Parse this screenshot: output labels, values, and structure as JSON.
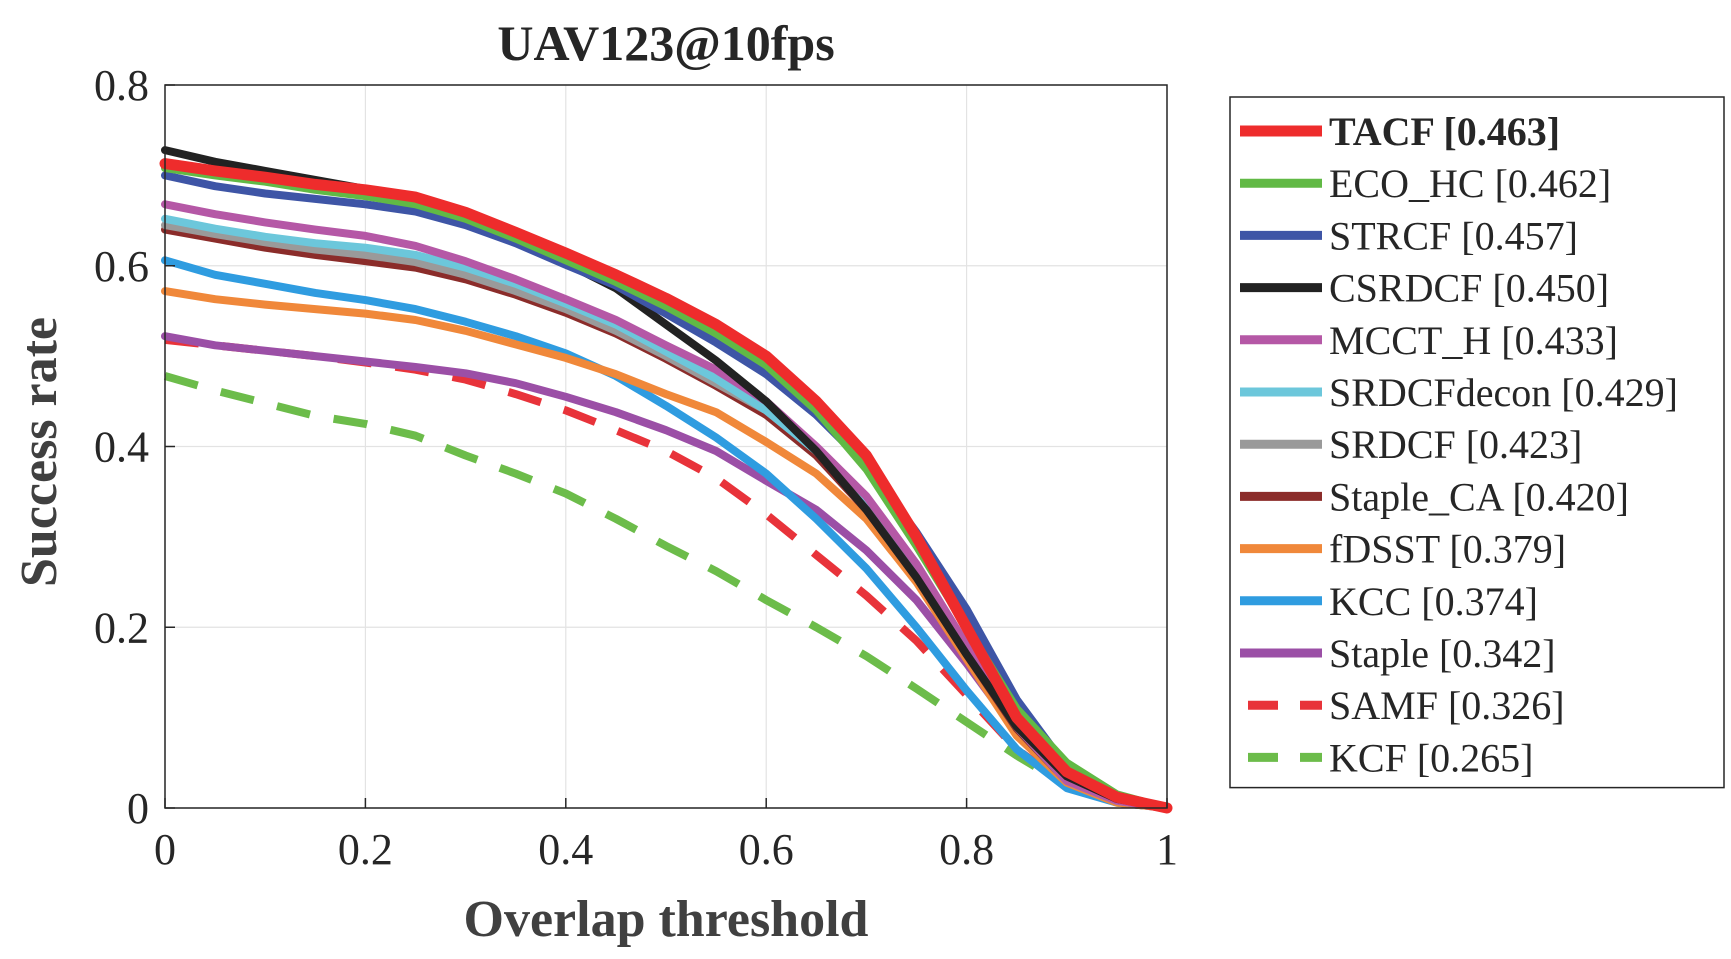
{
  "chart_data": {
    "type": "line",
    "title": "UAV123@10fps",
    "xlabel": "Overlap threshold",
    "ylabel": "Success rate",
    "xlim": [
      0,
      1
    ],
    "ylim": [
      0,
      0.8
    ],
    "xticks": [
      "0",
      "0.2",
      "0.4",
      "0.6",
      "0.8",
      "1"
    ],
    "yticks": [
      "0",
      "0.2",
      "0.4",
      "0.6",
      "0.8"
    ],
    "grid": true,
    "legend_position": "outside-right",
    "x": [
      0,
      0.05,
      0.1,
      0.15,
      0.2,
      0.25,
      0.3,
      0.35,
      0.4,
      0.45,
      0.5,
      0.55,
      0.6,
      0.65,
      0.7,
      0.75,
      0.8,
      0.85,
      0.9,
      0.95,
      1.0
    ],
    "series": [
      {
        "name": "TACF [0.463]",
        "color": "#ee2c2c",
        "dashed": false,
        "bold": true,
        "values": [
          0.713,
          0.705,
          0.698,
          0.69,
          0.684,
          0.676,
          0.659,
          0.637,
          0.614,
          0.59,
          0.564,
          0.535,
          0.5,
          0.45,
          0.39,
          0.3,
          0.2,
          0.1,
          0.04,
          0.012,
          0.0
        ]
      },
      {
        "name": "ECO_HC [0.462]",
        "color": "#61b945",
        "dashed": false,
        "bold": false,
        "values": [
          0.708,
          0.7,
          0.693,
          0.684,
          0.677,
          0.668,
          0.652,
          0.63,
          0.606,
          0.582,
          0.555,
          0.525,
          0.49,
          0.44,
          0.375,
          0.29,
          0.2,
          0.11,
          0.05,
          0.015,
          0.0
        ]
      },
      {
        "name": "STRCF [0.457]",
        "color": "#3e55a6",
        "dashed": false,
        "bold": false,
        "values": [
          0.7,
          0.688,
          0.68,
          0.674,
          0.668,
          0.66,
          0.645,
          0.625,
          0.601,
          0.578,
          0.547,
          0.515,
          0.48,
          0.435,
          0.38,
          0.305,
          0.22,
          0.12,
          0.045,
          0.012,
          0.0
        ]
      },
      {
        "name": "CSRDCF [0.450]",
        "color": "#222222",
        "dashed": false,
        "bold": false,
        "values": [
          0.728,
          0.715,
          0.705,
          0.695,
          0.685,
          0.674,
          0.655,
          0.63,
          0.603,
          0.575,
          0.535,
          0.495,
          0.45,
          0.395,
          0.33,
          0.255,
          0.17,
          0.09,
          0.035,
          0.01,
          0.0
        ]
      },
      {
        "name": "MCCT_H [0.433]",
        "color": "#b558a6",
        "dashed": false,
        "bold": false,
        "values": [
          0.668,
          0.657,
          0.648,
          0.64,
          0.633,
          0.622,
          0.605,
          0.585,
          0.563,
          0.54,
          0.512,
          0.485,
          0.45,
          0.4,
          0.345,
          0.27,
          0.18,
          0.09,
          0.03,
          0.008,
          0.0
        ]
      },
      {
        "name": "SRDCFdecon [0.429]",
        "color": "#6cc7db",
        "dashed": false,
        "bold": false,
        "values": [
          0.652,
          0.641,
          0.632,
          0.625,
          0.62,
          0.612,
          0.598,
          0.58,
          0.558,
          0.535,
          0.505,
          0.475,
          0.44,
          0.395,
          0.335,
          0.26,
          0.175,
          0.09,
          0.03,
          0.008,
          0.0
        ]
      },
      {
        "name": "SRDCF [0.423]",
        "color": "#9a9a9a",
        "dashed": false,
        "bold": false,
        "values": [
          0.645,
          0.635,
          0.626,
          0.618,
          0.612,
          0.604,
          0.59,
          0.572,
          0.552,
          0.528,
          0.5,
          0.47,
          0.44,
          0.395,
          0.335,
          0.26,
          0.175,
          0.09,
          0.03,
          0.008,
          0.0
        ]
      },
      {
        "name": "Staple_CA [0.420]",
        "color": "#8b2c2a",
        "dashed": false,
        "bold": false,
        "values": [
          0.64,
          0.63,
          0.62,
          0.612,
          0.605,
          0.598,
          0.585,
          0.568,
          0.548,
          0.525,
          0.497,
          0.467,
          0.435,
          0.39,
          0.33,
          0.255,
          0.17,
          0.088,
          0.03,
          0.008,
          0.0
        ]
      },
      {
        "name": "fDSST [0.379]",
        "color": "#f0883a",
        "dashed": false,
        "bold": false,
        "values": [
          0.572,
          0.563,
          0.557,
          0.552,
          0.547,
          0.54,
          0.528,
          0.513,
          0.498,
          0.48,
          0.458,
          0.438,
          0.405,
          0.37,
          0.32,
          0.25,
          0.165,
          0.08,
          0.028,
          0.006,
          0.0
        ]
      },
      {
        "name": "KCC [0.374]",
        "color": "#2f9ce0",
        "dashed": false,
        "bold": false,
        "values": [
          0.606,
          0.59,
          0.58,
          0.57,
          0.562,
          0.552,
          0.538,
          0.522,
          0.503,
          0.478,
          0.445,
          0.41,
          0.37,
          0.32,
          0.265,
          0.2,
          0.13,
          0.065,
          0.022,
          0.006,
          0.0
        ]
      },
      {
        "name": "Staple [0.342]",
        "color": "#9b4fa6",
        "dashed": false,
        "bold": false,
        "values": [
          0.522,
          0.512,
          0.506,
          0.5,
          0.494,
          0.488,
          0.481,
          0.47,
          0.455,
          0.438,
          0.418,
          0.395,
          0.362,
          0.33,
          0.285,
          0.23,
          0.16,
          0.085,
          0.03,
          0.008,
          0.0
        ]
      },
      {
        "name": "SAMF [0.326]",
        "color": "#e8333a",
        "dashed": true,
        "bold": false,
        "values": [
          0.518,
          0.512,
          0.506,
          0.5,
          0.493,
          0.485,
          0.474,
          0.458,
          0.44,
          0.418,
          0.395,
          0.365,
          0.325,
          0.28,
          0.235,
          0.185,
          0.125,
          0.065,
          0.025,
          0.006,
          0.0
        ]
      },
      {
        "name": "KCF [0.265]",
        "color": "#6cbc4a",
        "dashed": true,
        "bold": false,
        "values": [
          0.478,
          0.462,
          0.448,
          0.434,
          0.425,
          0.412,
          0.39,
          0.37,
          0.348,
          0.32,
          0.29,
          0.262,
          0.23,
          0.2,
          0.168,
          0.132,
          0.095,
          0.058,
          0.025,
          0.006,
          0.0
        ]
      }
    ]
  }
}
